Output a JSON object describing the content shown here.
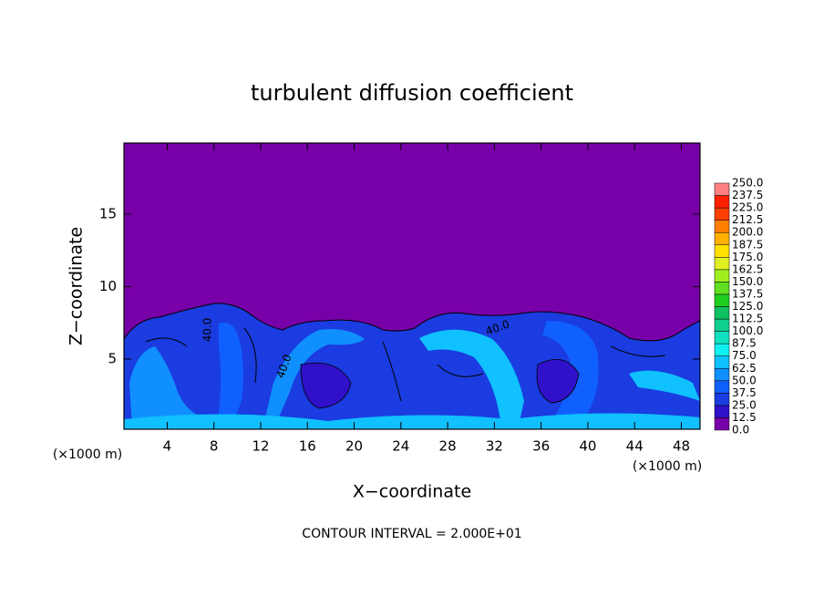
{
  "chart_data": {
    "type": "contour",
    "title": "turbulent diffusion coefficient",
    "xlabel": "X−coordinate",
    "ylabel": "Z−coordinate",
    "xunit": "(×1000 m)",
    "yunit": "(×1000 m)",
    "footer": "CONTOUR INTERVAL = 2.000E+01",
    "xlim": [
      0.3,
      49.6
    ],
    "ylim": [
      0.15,
      19.9
    ],
    "xticks": [
      4,
      8,
      12,
      16,
      20,
      24,
      28,
      32,
      36,
      40,
      44,
      48
    ],
    "yticks": [
      5,
      10,
      15
    ],
    "background_color": "#7800a8",
    "contour_labels": [
      "40.0",
      "40.0",
      "40.0"
    ],
    "colorbar": {
      "levels": [
        {
          "value": 0,
          "label": "0.0"
        },
        {
          "value": 12.5,
          "label": "12.5"
        },
        {
          "value": 25,
          "label": "25.0"
        },
        {
          "value": 37.5,
          "label": "37.5"
        },
        {
          "value": 50,
          "label": "50.0"
        },
        {
          "value": 62.5,
          "label": "62.5"
        },
        {
          "value": 75,
          "label": "75.0"
        },
        {
          "value": 87.5,
          "label": "87.5"
        },
        {
          "value": 100,
          "label": "100.0"
        },
        {
          "value": 112.5,
          "label": "112.5"
        },
        {
          "value": 125,
          "label": "125.0"
        },
        {
          "value": 137.5,
          "label": "137.5"
        },
        {
          "value": 150,
          "label": "150.0"
        },
        {
          "value": 162.5,
          "label": "162.5"
        },
        {
          "value": 175,
          "label": "175.0"
        },
        {
          "value": 187.5,
          "label": "187.5"
        },
        {
          "value": 200,
          "label": "200.0"
        },
        {
          "value": 212.5,
          "label": "212.5"
        },
        {
          "value": 225,
          "label": "225.0"
        },
        {
          "value": 237.5,
          "label": "237.5"
        },
        {
          "value": 250,
          "label": "250.0"
        }
      ],
      "colors": [
        "#7800a8",
        "#3010c8",
        "#1a3ce0",
        "#1060ff",
        "#1090ff",
        "#10c0ff",
        "#10f0f0",
        "#10e0c0",
        "#10d090",
        "#10c060",
        "#20d020",
        "#60e020",
        "#a0f020",
        "#e0f020",
        "#ffe000",
        "#ffb000",
        "#ff8000",
        "#ff4000",
        "#ff2000",
        "#ff8080"
      ]
    }
  }
}
